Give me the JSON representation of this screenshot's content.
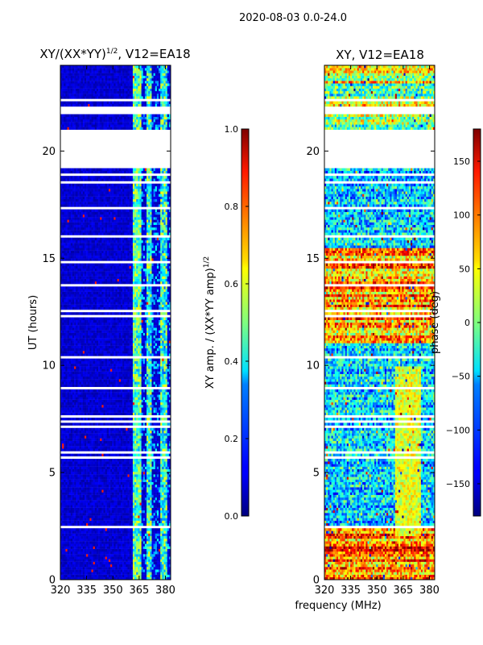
{
  "figure": {
    "suptitle": "2020-08-03 0.0-24.0",
    "xlabel": "frequency (MHz)"
  },
  "chart_data": [
    {
      "type": "heatmap",
      "title_main": "XY/(XX*YY)",
      "title_exp": "1/2",
      "title_rest": ", V12=EA18",
      "xlabel": "",
      "ylabel": "UT (hours)",
      "xlim": [
        320,
        383
      ],
      "ylim": [
        0,
        24
      ],
      "xticks": [
        320,
        335,
        350,
        365,
        380
      ],
      "yticks": [
        0,
        5,
        10,
        15,
        20
      ],
      "colorbar": {
        "label_main": "XY amp. / (XX*YY amp)",
        "label_exp": "1/2",
        "range": [
          0.0,
          1.0
        ],
        "ticks": [
          "0.0",
          "0.2",
          "0.4",
          "0.6",
          "0.8",
          "1.0"
        ],
        "tick_values": [
          0.0,
          0.2,
          0.4,
          0.6,
          0.8,
          1.0
        ],
        "colormap": "jet"
      },
      "blank_ut_ranges": [
        [
          19.2,
          20.5
        ],
        [
          21.7,
          22.1
        ]
      ],
      "bright_freq_bands_mhz": [
        [
          361,
          366
        ],
        [
          369,
          372
        ],
        [
          377,
          381
        ]
      ]
    },
    {
      "type": "heatmap",
      "title": "XY, V12=EA18",
      "xlabel": "",
      "ylabel": "",
      "xlim": [
        320,
        383
      ],
      "ylim": [
        0,
        24
      ],
      "xticks": [
        320,
        335,
        350,
        365,
        380
      ],
      "yticks": [
        0,
        5,
        10,
        15,
        20
      ],
      "colorbar": {
        "label": "phase (deg)",
        "range": [
          -180,
          180
        ],
        "ticks": [
          "−150",
          "−100",
          "−50",
          "0",
          "50",
          "100",
          "150"
        ],
        "tick_values": [
          -150,
          -100,
          -50,
          0,
          50,
          100,
          150
        ],
        "colormap": "jet"
      },
      "blank_ut_ranges": [
        [
          19.2,
          20.5
        ],
        [
          21.7,
          22.1
        ]
      ]
    }
  ]
}
